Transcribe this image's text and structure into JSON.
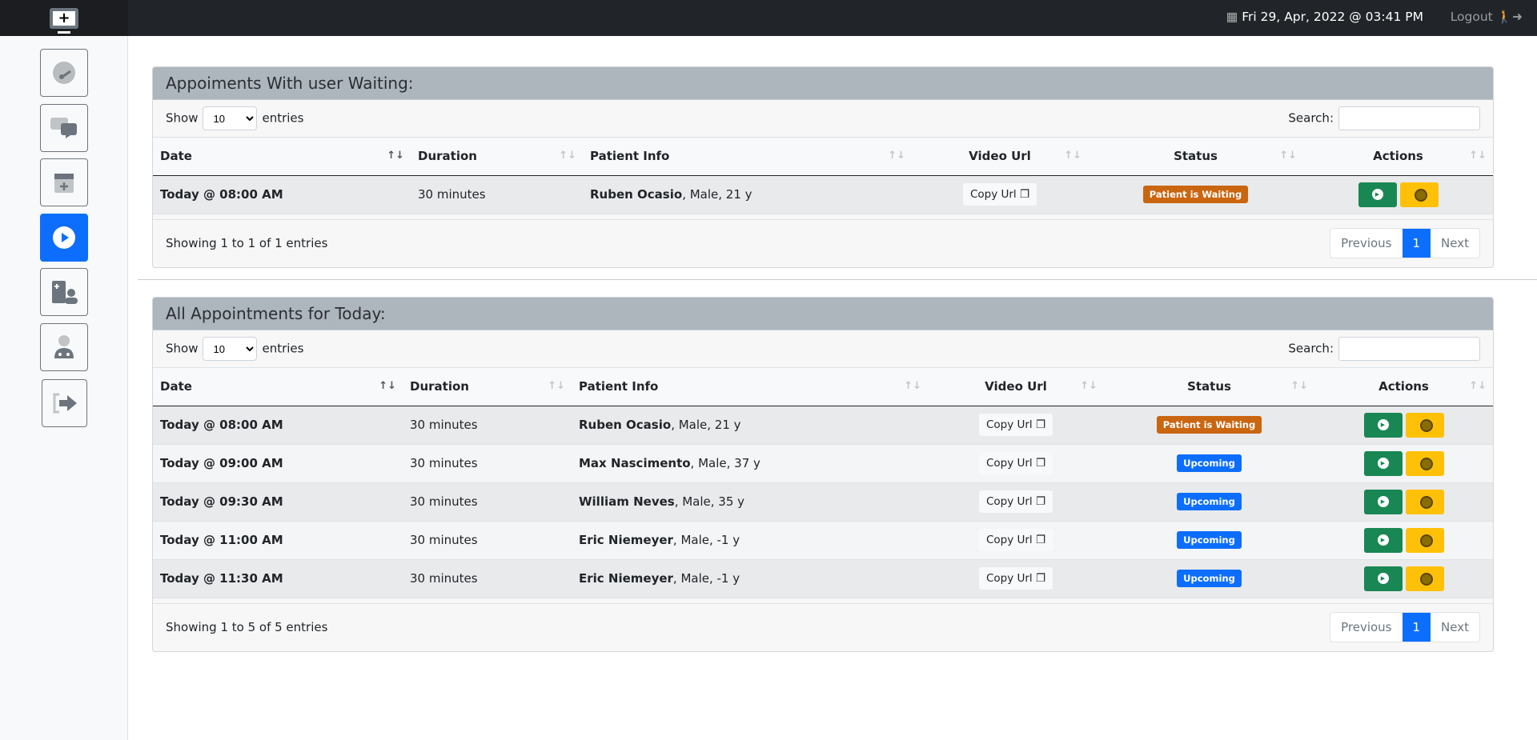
{
  "header": {
    "datetime": "Fri 29, Apr, 2022 @ 03:41 PM",
    "logout": "Logout",
    "calendar_icon": "calendar-icon",
    "logout_icon": "walking-exit-icon"
  },
  "sidebar": {
    "items": [
      {
        "name": "dashboard",
        "icon": "gauge-icon"
      },
      {
        "name": "messages",
        "icon": "comments-icon"
      },
      {
        "name": "schedule",
        "icon": "calendar-plus-icon"
      },
      {
        "name": "video-calls",
        "icon": "play-circle-icon",
        "active": true
      },
      {
        "name": "patients",
        "icon": "medical-file-user-icon"
      },
      {
        "name": "doctor",
        "icon": "user-doctor-icon"
      },
      {
        "name": "sign-out",
        "icon": "sign-out-icon"
      }
    ]
  },
  "colors": {
    "primary": "#0d6efd",
    "success": "#198754",
    "warning": "#ffc107",
    "waiting": "#ca6510"
  },
  "waiting": {
    "title": "Appoiments With user Waiting:",
    "show": "Show",
    "entries": "entries",
    "page_size": "10",
    "search": "Search:",
    "columns": [
      "Date",
      "Duration",
      "Patient Info",
      "Video Url",
      "Status",
      "Actions"
    ],
    "rows": [
      {
        "date": "Today @ 08:00 AM",
        "duration": "30 minutes",
        "name": "Ruben Ocasio",
        "info": ", Male, 21 y",
        "video": "Copy Url",
        "status": "Patient is Waiting"
      }
    ],
    "info": "Showing 1 to 1 of 1 entries",
    "prev": "Previous",
    "page": "1",
    "next": "Next"
  },
  "today": {
    "title": "All Appointments for Today:",
    "show": "Show",
    "entries": "entries",
    "page_size": "10",
    "search": "Search:",
    "columns": [
      "Date",
      "Duration",
      "Patient Info",
      "Video Url",
      "Status",
      "Actions"
    ],
    "rows": [
      {
        "date": "Today @ 08:00 AM",
        "duration": "30 minutes",
        "name": "Ruben Ocasio",
        "info": ", Male, 21 y",
        "video": "Copy Url",
        "status": "Patient is Waiting"
      },
      {
        "date": "Today @ 09:00 AM",
        "duration": "30 minutes",
        "name": "Max Nascimento",
        "info": ", Male, 37 y",
        "video": "Copy Url",
        "status": "Upcoming"
      },
      {
        "date": "Today @ 09:30 AM",
        "duration": "30 minutes",
        "name": "William Neves",
        "info": ", Male, 35 y",
        "video": "Copy Url",
        "status": "Upcoming"
      },
      {
        "date": "Today @ 11:00 AM",
        "duration": "30 minutes",
        "name": "Eric Niemeyer",
        "info": ", Male, -1 y",
        "video": "Copy Url",
        "status": "Upcoming"
      },
      {
        "date": "Today @ 11:30 AM",
        "duration": "30 minutes",
        "name": "Eric Niemeyer",
        "info": ", Male, -1 y",
        "video": "Copy Url",
        "status": "Upcoming"
      }
    ],
    "info": "Showing 1 to 5 of 5 entries",
    "prev": "Previous",
    "page": "1",
    "next": "Next"
  }
}
